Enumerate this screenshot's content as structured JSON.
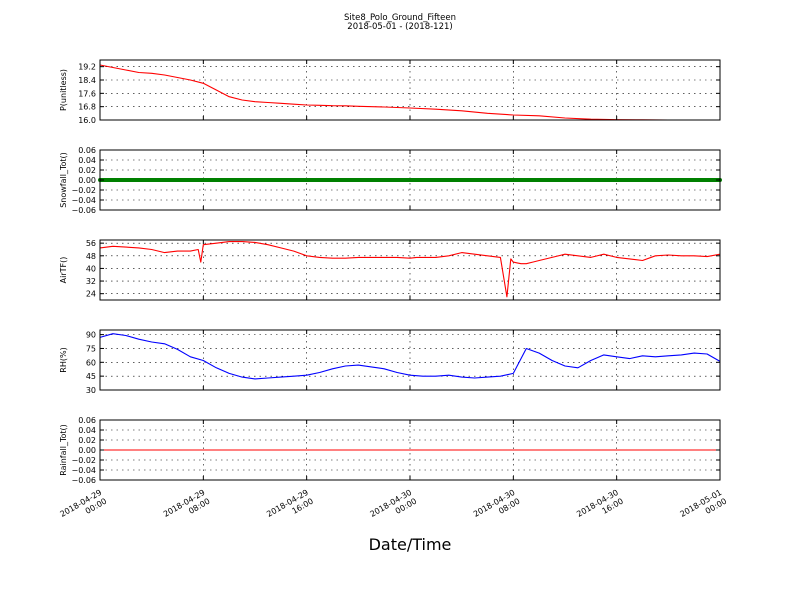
{
  "figure": {
    "title_line1": "Site8_Polo_Ground_Fifteen",
    "title_line2": "2018-05-01 - (2018-121)",
    "xlabel": "Date/Time"
  },
  "colors": {
    "red": "#ff0000",
    "green": "#008000",
    "blue": "#0000ff",
    "axis": "#000000",
    "grid": "#000000"
  },
  "chart_data": [
    {
      "type": "line",
      "ylabel": "P(unitless)",
      "ylim": [
        16.0,
        19.6
      ],
      "yticks": [
        16.0,
        16.8,
        17.6,
        18.4,
        19.2
      ],
      "ytick_labels": [
        "16.0",
        "16.8",
        "17.6",
        "18.4",
        "19.2"
      ],
      "grid": true,
      "series": [
        {
          "color": "#ff0000",
          "x": [
            0,
            1,
            2,
            3,
            4,
            5,
            6,
            7,
            8,
            9,
            10,
            11,
            12,
            13,
            14,
            15,
            16,
            17,
            18,
            19,
            20,
            22,
            24,
            26,
            28,
            30,
            32,
            34,
            36,
            38,
            40,
            42,
            44,
            46,
            48
          ],
          "y": [
            19.3,
            19.15,
            19.0,
            18.85,
            18.8,
            18.7,
            18.55,
            18.4,
            18.2,
            17.8,
            17.4,
            17.2,
            17.1,
            17.05,
            17.0,
            16.95,
            16.9,
            16.88,
            16.86,
            16.85,
            16.82,
            16.78,
            16.72,
            16.65,
            16.55,
            16.4,
            16.3,
            16.25,
            16.12,
            16.05,
            16.02,
            16.01,
            16.0,
            16.0,
            16.0
          ]
        }
      ]
    },
    {
      "type": "line",
      "ylabel": "Snowfall_Tot()",
      "ylim": [
        -0.06,
        0.06
      ],
      "yticks": [
        -0.06,
        -0.04,
        -0.02,
        0.0,
        0.02,
        0.04,
        0.06
      ],
      "ytick_labels": [
        "−0.06",
        "−0.04",
        "−0.02",
        "0.00",
        "0.02",
        "0.04",
        "0.06"
      ],
      "grid": true,
      "markers": true,
      "series": [
        {
          "color": "#008000",
          "x": [
            0,
            48
          ],
          "y": [
            0.0,
            0.0
          ]
        }
      ]
    },
    {
      "type": "line",
      "ylabel": "AirTF()",
      "ylim": [
        20,
        58
      ],
      "yticks": [
        24,
        32,
        40,
        48,
        56
      ],
      "ytick_labels": [
        "24",
        "32",
        "40",
        "48",
        "56"
      ],
      "grid": true,
      "series": [
        {
          "color": "#ff0000",
          "x": [
            0,
            1,
            2,
            3,
            4,
            5,
            6,
            7,
            7.6,
            7.8,
            8,
            9,
            10,
            11,
            12,
            13,
            14,
            15,
            16,
            17,
            18,
            19,
            20,
            21,
            22,
            23,
            24,
            24.5,
            25,
            26,
            27,
            28,
            29,
            30,
            31,
            31.5,
            31.8,
            32,
            32.3,
            32.6,
            33,
            33.5,
            34,
            35,
            36,
            37,
            38,
            39,
            40,
            41,
            42,
            43,
            44,
            45,
            46,
            47,
            48
          ],
          "y": [
            53,
            54,
            53.5,
            53,
            52,
            50,
            51,
            51,
            52,
            44,
            55,
            56,
            57,
            57,
            56.5,
            55,
            53,
            51,
            48,
            47,
            46.5,
            46.5,
            47,
            47,
            47,
            47,
            46.5,
            47,
            47,
            47,
            48,
            50,
            49,
            48,
            47,
            22,
            46,
            44,
            43.5,
            43,
            43,
            44,
            45,
            47,
            49,
            48,
            47,
            49,
            47,
            46,
            45,
            48,
            48.5,
            48,
            48,
            47.5,
            49
          ]
        }
      ]
    },
    {
      "type": "line",
      "ylabel": "RH(%)",
      "ylim": [
        30,
        95
      ],
      "yticks": [
        30,
        45,
        60,
        75,
        90
      ],
      "ytick_labels": [
        "30",
        "45",
        "60",
        "75",
        "90"
      ],
      "grid": true,
      "series": [
        {
          "color": "#0000ff",
          "x": [
            0,
            1,
            2,
            3,
            4,
            5,
            6,
            7,
            8,
            9,
            10,
            11,
            12,
            13,
            14,
            15,
            16,
            17,
            18,
            19,
            20,
            21,
            22,
            23,
            24,
            25,
            26,
            27,
            28,
            29,
            30,
            31,
            32,
            33,
            34,
            35,
            36,
            37,
            38,
            39,
            40,
            41,
            42,
            43,
            44,
            45,
            46,
            47,
            48
          ],
          "y": [
            87,
            91,
            89,
            85,
            82,
            80,
            74,
            66,
            62,
            54,
            48,
            44,
            42,
            43,
            44,
            45,
            46,
            49,
            53,
            56,
            57,
            55,
            53,
            49,
            46,
            45,
            45,
            46,
            44,
            43,
            44,
            45,
            48,
            75,
            70,
            62,
            56,
            54,
            62,
            68,
            66,
            64,
            67,
            66,
            67,
            68,
            70,
            69,
            61
          ]
        }
      ]
    },
    {
      "type": "line",
      "ylabel": "Rainfall_Tot()",
      "ylim": [
        -0.06,
        0.06
      ],
      "yticks": [
        -0.06,
        -0.04,
        -0.02,
        0.0,
        0.02,
        0.04,
        0.06
      ],
      "ytick_labels": [
        "−0.06",
        "−0.04",
        "−0.02",
        "0.00",
        "0.02",
        "0.04",
        "0.06"
      ],
      "grid": true,
      "series": [
        {
          "color": "#ff0000",
          "x": [
            0,
            48
          ],
          "y": [
            0.0,
            0.0
          ]
        }
      ]
    }
  ],
  "xaxis": {
    "xlim": [
      0,
      48
    ],
    "ticks": [
      0,
      8,
      16,
      24,
      32,
      40,
      48
    ],
    "tick_labels": [
      [
        "2018-04-29",
        "00:00"
      ],
      [
        "2018-04-29",
        "08:00"
      ],
      [
        "2018-04-29",
        "16:00"
      ],
      [
        "2018-04-30",
        "00:00"
      ],
      [
        "2018-04-30",
        "08:00"
      ],
      [
        "2018-04-30",
        "16:00"
      ],
      [
        "2018-05-01",
        "00:00"
      ]
    ]
  }
}
